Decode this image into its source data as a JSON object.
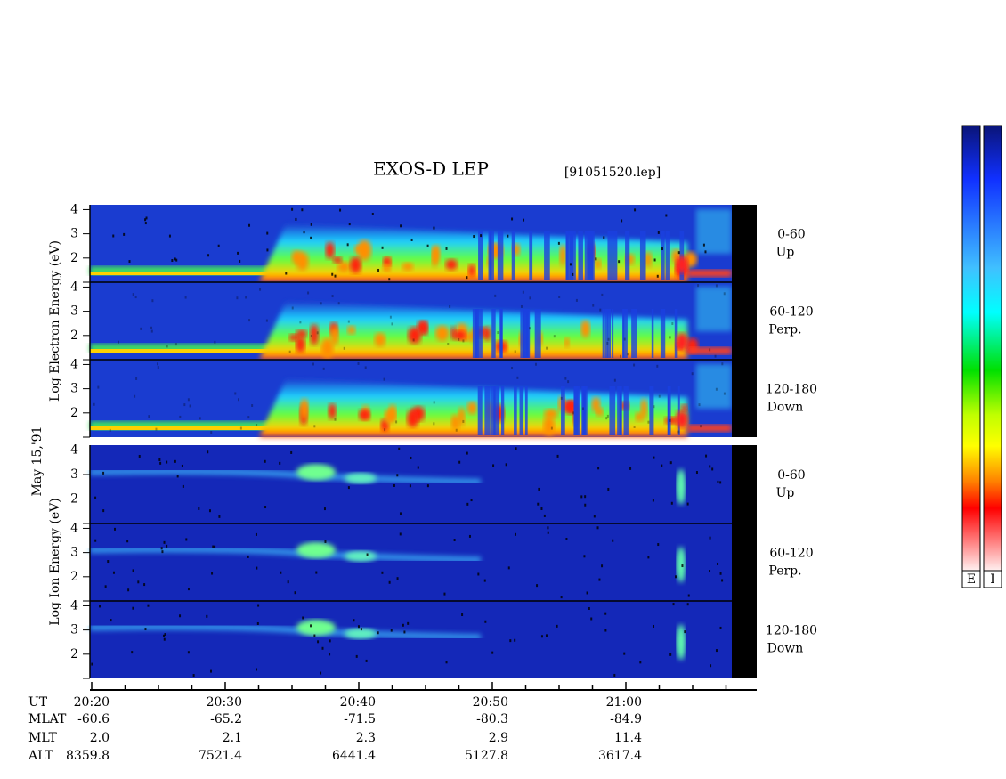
{
  "title": "EXOS-D LEP",
  "file": "[91051520.lep]",
  "date_label": "May 15,'91",
  "energy_axis": {
    "ylim": [
      1,
      4.2
    ],
    "yticks": [
      2,
      3,
      4
    ]
  },
  "electron": {
    "label": "Log  Electron  Energy (eV)",
    "panels": [
      {
        "angle": "0-60",
        "dir": "Up"
      },
      {
        "angle": "60-120",
        "dir": "Perp."
      },
      {
        "angle": "120-180",
        "dir": "Down"
      }
    ]
  },
  "ion": {
    "label": "Log  Ion  Energy (eV)",
    "panels": [
      {
        "angle": "0-60",
        "dir": "Up"
      },
      {
        "angle": "60-120",
        "dir": "Perp."
      },
      {
        "angle": "120-180",
        "dir": "Down"
      }
    ]
  },
  "orbit_table": {
    "rows": [
      {
        "label": "UT",
        "values": [
          "20:20",
          "20:30",
          "20:40",
          "20:50",
          "21:00"
        ]
      },
      {
        "label": "MLAT",
        "values": [
          "-60.6",
          "-65.2",
          "-71.5",
          "-80.3",
          "-84.9"
        ]
      },
      {
        "label": "MLT",
        "values": [
          "2.0",
          "2.1",
          "2.3",
          "2.9",
          "11.4"
        ]
      },
      {
        "label": "ALT",
        "values": [
          "8359.8",
          "7521.4",
          "6441.4",
          "5127.8",
          "3617.4"
        ]
      }
    ]
  },
  "colorbars": [
    "E",
    "I"
  ]
}
